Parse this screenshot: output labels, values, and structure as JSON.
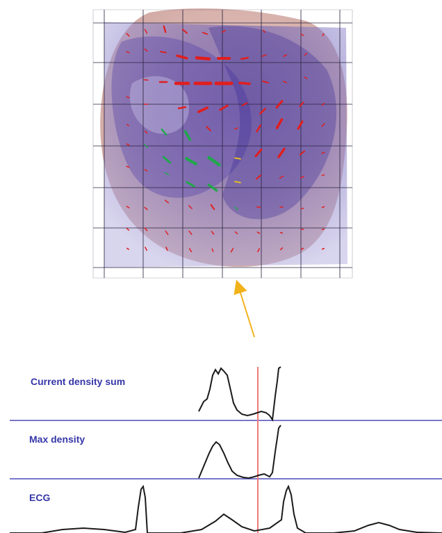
{
  "colors": {
    "background": "#ffffff",
    "grid_line": "#2a2440",
    "heart_overlay": "#6b5fb8",
    "heart_tissue": "#c89a94",
    "arrow_red": "#e01e1e",
    "arrow_green": "#1fa84a",
    "arrow_yellow": "#e6c21a",
    "pointer_arrow": "#f2b21a",
    "separator": "#4a4ab8",
    "label_text": "#3636a8",
    "trace": "#1a1a1a",
    "time_marker": "#f07a7a"
  },
  "icons": {
    "pointer": "up-arrow-icon"
  },
  "traces": {
    "current_density_sum": {
      "label": "Current density sum"
    },
    "max_density": {
      "label": "Max density"
    },
    "ecg": {
      "label": "ECG"
    }
  }
}
